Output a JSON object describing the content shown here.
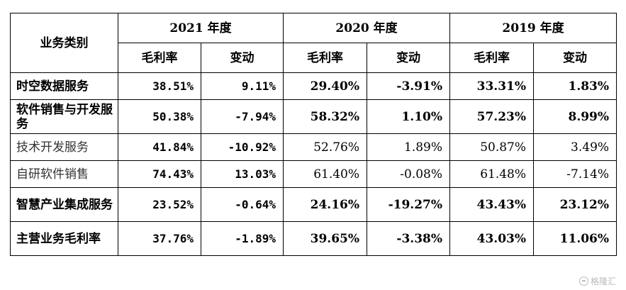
{
  "table": {
    "header": {
      "category": "业务类别",
      "years": [
        "2021 年度",
        "2020 年度",
        "2019 年度"
      ],
      "sub": [
        "毛利率",
        "变动",
        "毛利率",
        "变动",
        "毛利率",
        "变动"
      ]
    },
    "rows": [
      {
        "label": "时空数据服务",
        "values": [
          "38.51%",
          "9.11%",
          "29.40%",
          "-3.91%",
          "33.31%",
          "1.83%"
        ],
        "style": "bold",
        "height": "single"
      },
      {
        "label": "软件销售与开发服务",
        "values": [
          "50.38%",
          "-7.94%",
          "58.32%",
          "1.10%",
          "57.23%",
          "8.99%"
        ],
        "style": "bold",
        "height": "double"
      },
      {
        "label": "技术开发服务",
        "values": [
          "41.84%",
          "-10.92%",
          "52.76%",
          "1.89%",
          "50.87%",
          "3.49%"
        ],
        "style": "light",
        "height": "single"
      },
      {
        "label": "自研软件销售",
        "values": [
          "74.43%",
          "13.03%",
          "61.40%",
          "-0.08%",
          "61.48%",
          "-7.14%"
        ],
        "style": "light",
        "height": "single"
      },
      {
        "label": "智慧产业集成服务",
        "values": [
          "23.52%",
          "-0.64%",
          "24.16%",
          "-19.27%",
          "43.43%",
          "23.12%"
        ],
        "style": "bold",
        "height": "double"
      },
      {
        "label": "主营业务毛利率",
        "values": [
          "37.76%",
          "-1.89%",
          "39.65%",
          "-3.38%",
          "43.03%",
          "11.06%"
        ],
        "style": "bold",
        "height": "double"
      }
    ]
  },
  "watermark": {
    "text": "格隆汇",
    "icon": "gelonghui-logo-icon"
  }
}
